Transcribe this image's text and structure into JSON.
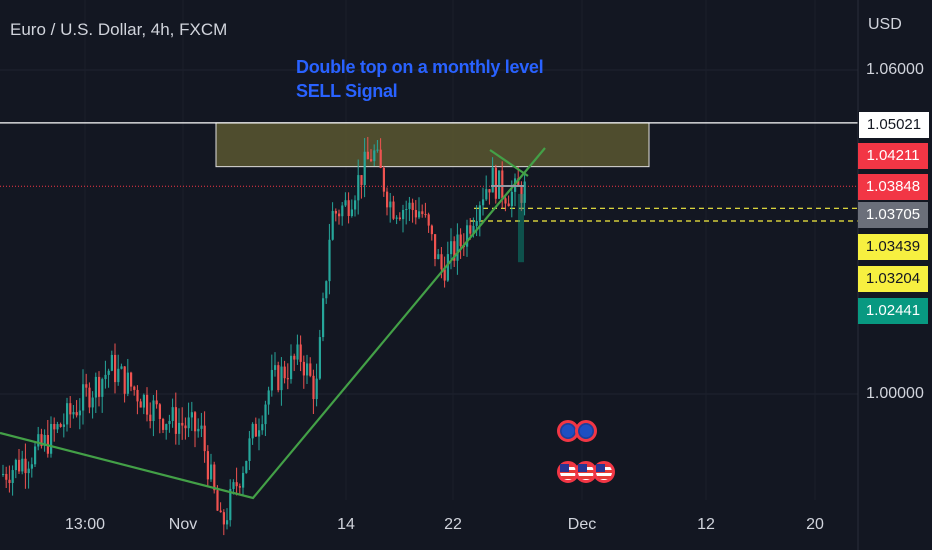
{
  "header": {
    "symbol_title": "Euro / U.S. Dollar, 4h, FXCM",
    "currency": "USD"
  },
  "annotation": {
    "line1": "Double top on a monthly level",
    "line2": "SELL Signal"
  },
  "colors": {
    "background": "#131722",
    "up": "#26a69a",
    "down": "#ef5350",
    "trendline": "#43a047",
    "zone_fill": "#5a5730",
    "zone_border": "#e0e0e0",
    "annotation": "#2962ff",
    "price_badge_red": "#f23645",
    "price_badge_gray": "#6b6f7a",
    "price_badge_yellow": "#f7f040",
    "price_badge_teal": "#089981"
  },
  "price_badges": [
    {
      "value": "1.05021",
      "style": "white"
    },
    {
      "value": "1.04211",
      "style": "red"
    },
    {
      "value": "1.03848",
      "style": "red"
    },
    {
      "value": "1.03705",
      "style": "gray"
    },
    {
      "value": "1.03439",
      "style": "yellow"
    },
    {
      "value": "1.03204",
      "style": "yellow"
    },
    {
      "value": "1.02441",
      "style": "teal"
    }
  ],
  "y_axis_labels": [
    "1.06000",
    "1.00000"
  ],
  "x_axis_labels": [
    "13:00",
    "Nov",
    "14",
    "22",
    "Dec",
    "12",
    "20"
  ],
  "event_icons": [
    "eu-flag-icon",
    "eu-flag-icon",
    "us-flag-icon",
    "us-flag-icon",
    "us-flag-icon"
  ],
  "chart_data": {
    "type": "candlestick",
    "title": "Euro / U.S. Dollar, 4h, FXCM",
    "ylabel": "USD",
    "ylim": [
      0.975,
      1.075
    ],
    "x_ticks": [
      "13:00",
      "Nov",
      "14",
      "22",
      "Dec",
      "12",
      "20"
    ],
    "y_ticks": [
      1.06,
      1.0
    ],
    "close_path": [
      {
        "x": "Oct 28",
        "y": 0.985
      },
      {
        "x": "Oct 30",
        "y": 0.99
      },
      {
        "x": "Oct 31",
        "y": 1.005
      },
      {
        "x": "Nov 1",
        "y": 0.996
      },
      {
        "x": "Nov 3",
        "y": 0.993
      },
      {
        "x": "Nov 4",
        "y": 0.975
      },
      {
        "x": "Nov 6",
        "y": 1.002
      },
      {
        "x": "Nov 8",
        "y": 1.007
      },
      {
        "x": "Nov 10",
        "y": 1.0
      },
      {
        "x": "Nov 11",
        "y": 1.033
      },
      {
        "x": "Nov 13",
        "y": 1.035
      },
      {
        "x": "Nov 15",
        "y": 1.045
      },
      {
        "x": "Nov 16",
        "y": 1.035
      },
      {
        "x": "Nov 18",
        "y": 1.034
      },
      {
        "x": "Nov 20",
        "y": 1.023
      },
      {
        "x": "Nov 22",
        "y": 1.028
      },
      {
        "x": "Nov 23",
        "y": 1.037
      },
      {
        "x": "Nov 24",
        "y": 1.04
      },
      {
        "x": "Nov 25",
        "y": 1.038
      },
      {
        "x": "Nov 26",
        "y": 1.037
      },
      {
        "x": "Nov 27",
        "y": 1.038
      }
    ],
    "resistance_zone": [
      1.0421,
      1.0502
    ],
    "levels": [
      1.05021,
      1.04211,
      1.03848,
      1.03705,
      1.03439,
      1.03204,
      1.02441
    ]
  }
}
